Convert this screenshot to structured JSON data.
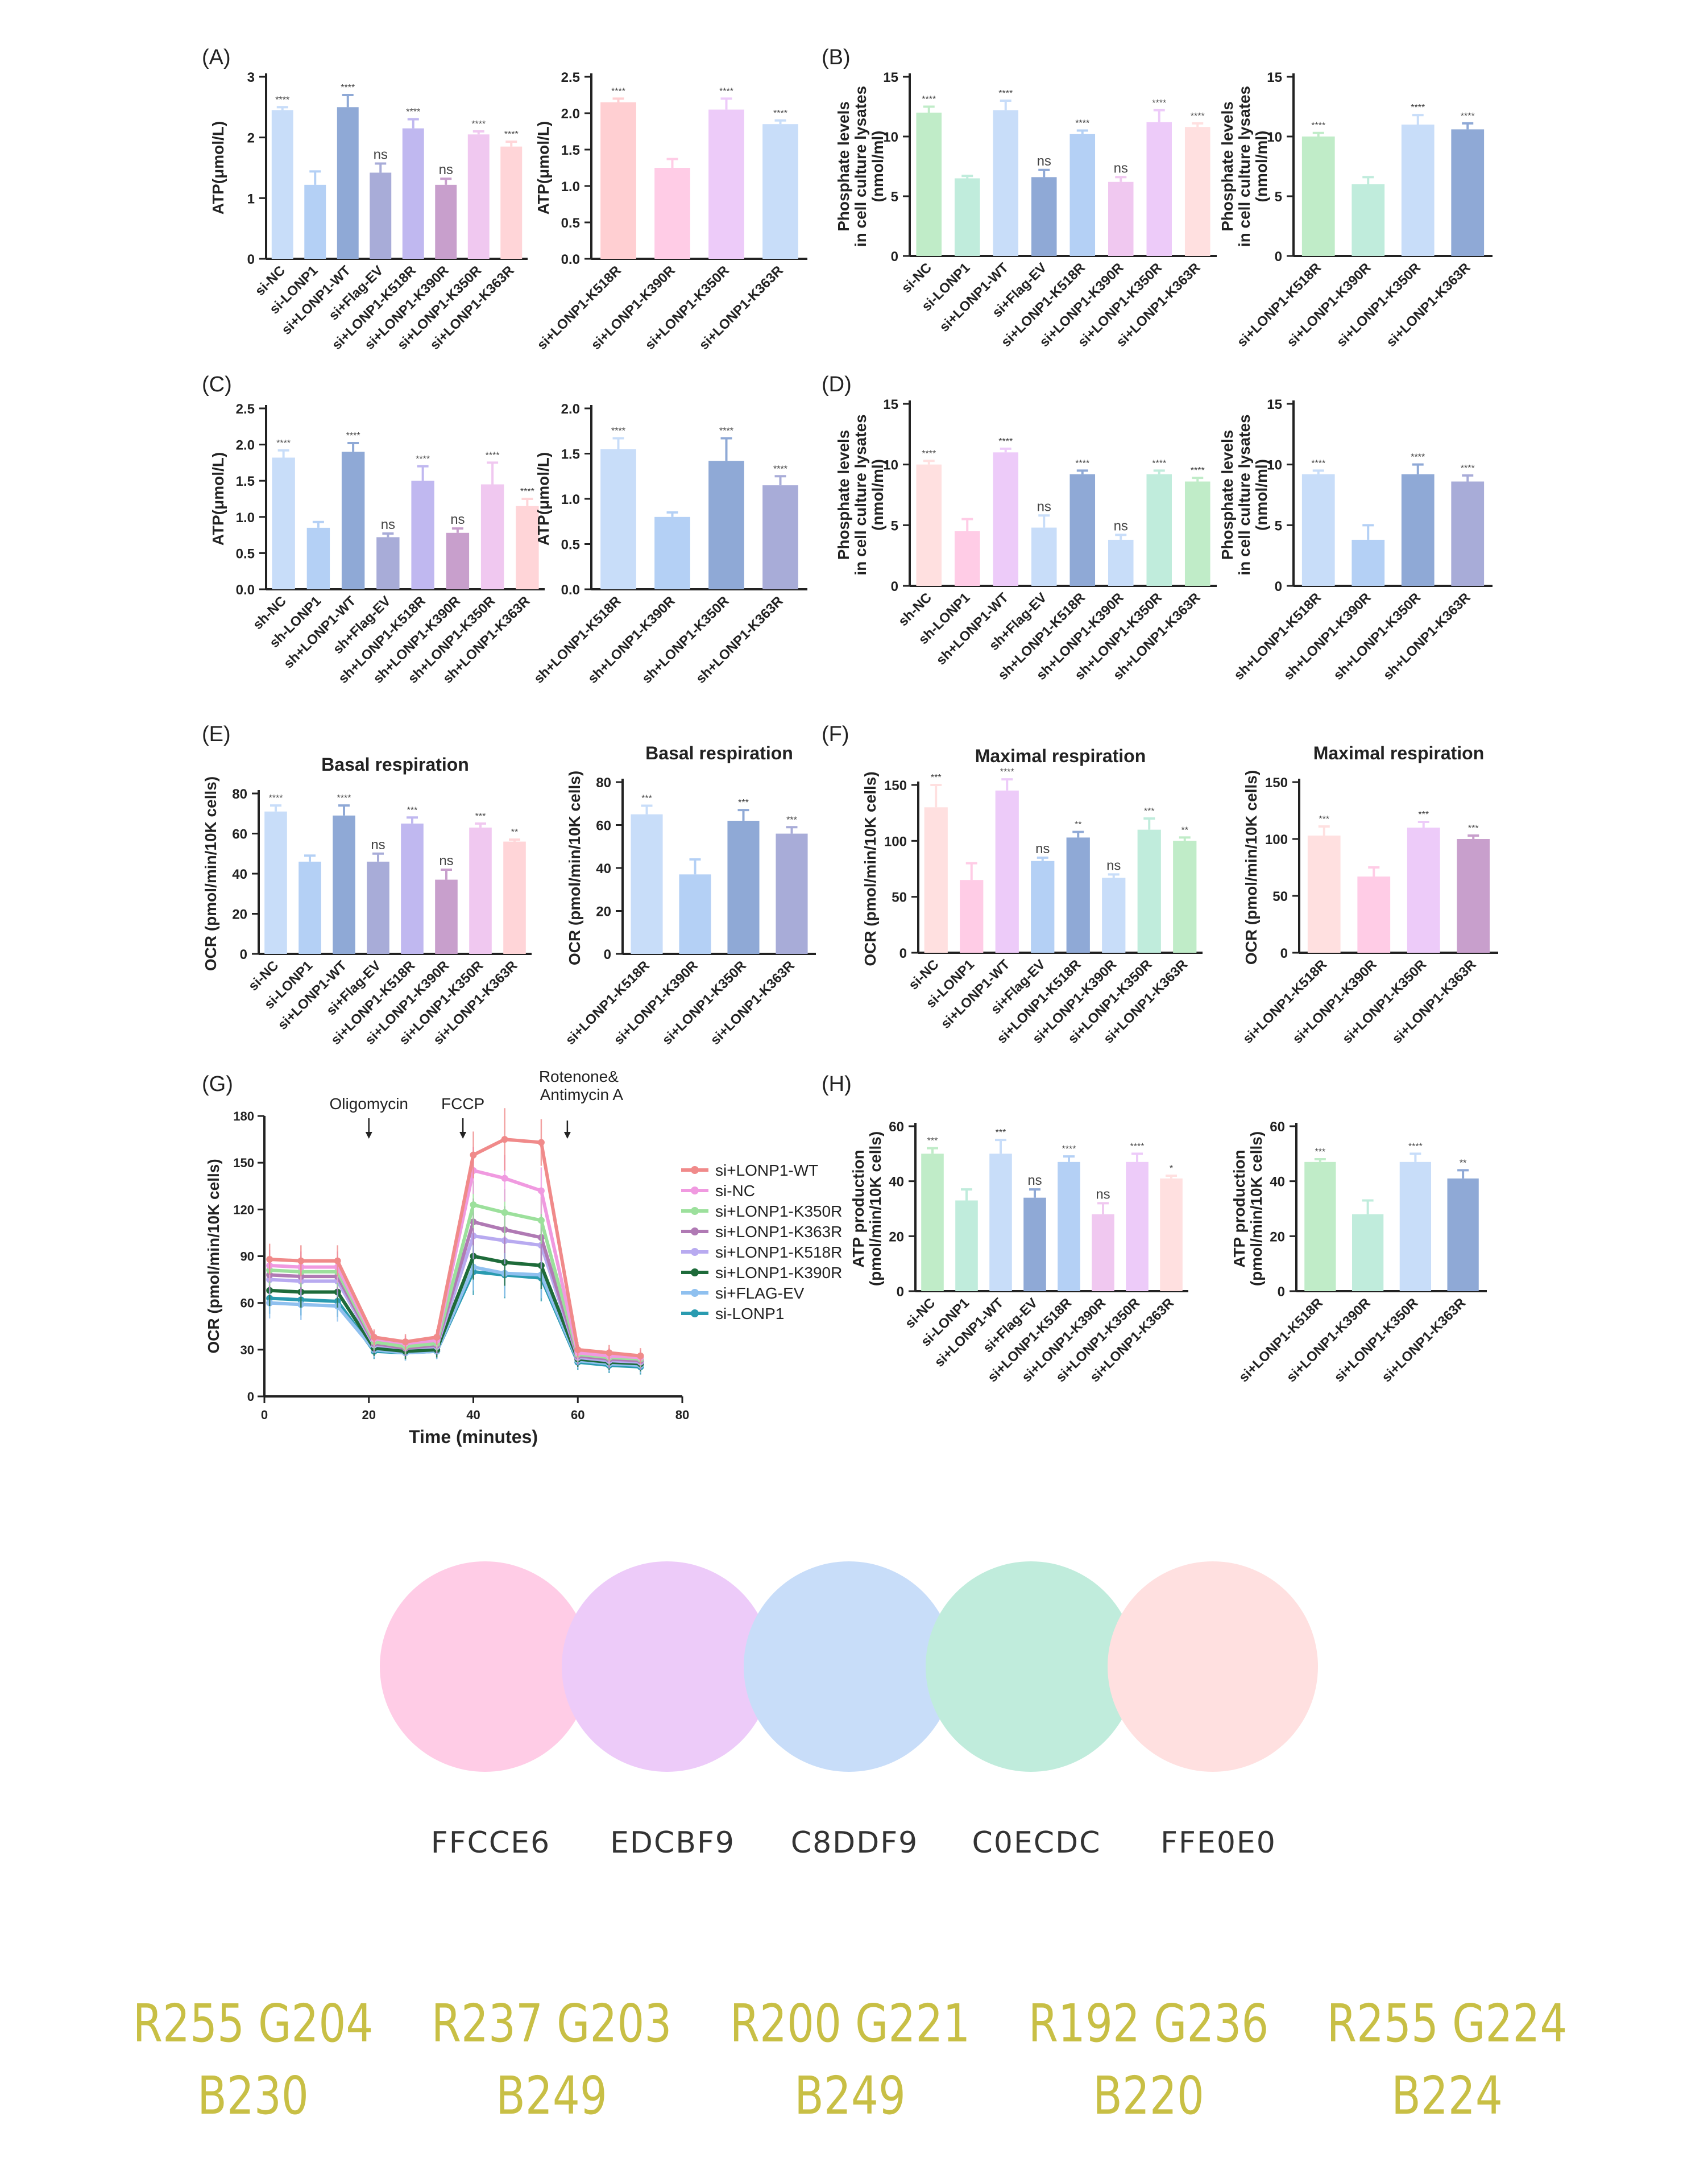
{
  "panels": [
    {
      "key": "A",
      "label": "(A)"
    },
    {
      "key": "B",
      "label": "(B)"
    },
    {
      "key": "C",
      "label": "(C)"
    },
    {
      "key": "D",
      "label": "(D)"
    },
    {
      "key": "E",
      "label": "(E)"
    },
    {
      "key": "F",
      "label": "(F)"
    },
    {
      "key": "G",
      "label": "(G)"
    },
    {
      "key": "H",
      "label": "(H)"
    }
  ],
  "chart_data": [
    {
      "id": "A1",
      "panel": "A",
      "type": "bar",
      "ylabel": "ATP(μmol/L)",
      "ylim": [
        0,
        3
      ],
      "yticks": [
        0,
        1,
        2,
        3
      ],
      "categories": [
        "si-NC",
        "si-LONP1",
        "si+LONP1-WT",
        "si+Flag-EV",
        "si+LONP1-K518R",
        "si+LONP1-K390R",
        "si+LONP1-K350R",
        "si+LONP1-K363R"
      ],
      "values": [
        2.45,
        1.22,
        2.5,
        1.42,
        2.15,
        1.22,
        2.05,
        1.85
      ],
      "errors": [
        0.05,
        0.22,
        0.2,
        0.15,
        0.15,
        0.1,
        0.05,
        0.08
      ],
      "sig": [
        "****",
        "",
        "****",
        "ns",
        "****",
        "ns",
        "****",
        "****"
      ],
      "colors": [
        "#c8ddf9",
        "#b4d0f5",
        "#8fa9d6",
        "#a8acd8",
        "#c0b8f0",
        "#c89fcc",
        "#f0c8f0",
        "#ffd5d8"
      ]
    },
    {
      "id": "A2",
      "panel": "A",
      "type": "bar",
      "ylabel": "ATP(μmol/L)",
      "ylim": [
        0,
        2.5
      ],
      "yticks": [
        0,
        0.5,
        1.0,
        1.5,
        2.0,
        2.5
      ],
      "categories": [
        "si+LONP1-K518R",
        "si+LONP1-K390R",
        "si+LONP1-K350R",
        "si+LONP1-K363R"
      ],
      "values": [
        2.15,
        1.25,
        2.05,
        1.85
      ],
      "errors": [
        0.05,
        0.12,
        0.15,
        0.05
      ],
      "sig": [
        "****",
        "",
        "****",
        "****"
      ],
      "colors": [
        "#ffcfd2",
        "#ffcce6",
        "#edcbf9",
        "#c8ddf9"
      ]
    },
    {
      "id": "B1",
      "panel": "B",
      "type": "bar",
      "ylabel": "Phosphate levels in cell culture lysates (nmol/ml)",
      "ylim": [
        0,
        15
      ],
      "yticks": [
        0,
        5,
        10,
        15
      ],
      "categories": [
        "si-NC",
        "si-LONP1",
        "si+LONP1-WT",
        "si+Flag-EV",
        "si+LONP1-K518R",
        "si+LONP1-K390R",
        "si+LONP1-K350R",
        "si+LONP1-K363R"
      ],
      "values": [
        12,
        6.5,
        12.2,
        6.6,
        10.2,
        6.2,
        11.2,
        10.8
      ],
      "errors": [
        0.5,
        0.2,
        0.8,
        0.6,
        0.3,
        0.4,
        1.0,
        0.3
      ],
      "sig": [
        "****",
        "",
        "****",
        "ns",
        "****",
        "ns",
        "****",
        "****"
      ],
      "colors": [
        "#c0ecc8",
        "#c0ecdc",
        "#c8ddf9",
        "#8fa9d6",
        "#b4d0f5",
        "#f0c8f0",
        "#edcbf9",
        "#ffe0e0"
      ]
    },
    {
      "id": "B2",
      "panel": "B",
      "type": "bar",
      "ylabel": "Phosphate levels in cell culture lysates (nmol/ml)",
      "ylim": [
        0,
        15
      ],
      "yticks": [
        0,
        5,
        10,
        15
      ],
      "categories": [
        "si+LONP1-K518R",
        "si+LONP1-K390R",
        "si+LONP1-K350R",
        "si+LONP1-K363R"
      ],
      "values": [
        10,
        6,
        11,
        10.6
      ],
      "errors": [
        0.3,
        0.6,
        0.8,
        0.5
      ],
      "sig": [
        "****",
        "",
        "****",
        "****"
      ],
      "colors": [
        "#c0ecc8",
        "#c0ecdc",
        "#c8ddf9",
        "#8fa9d6"
      ]
    },
    {
      "id": "C1",
      "panel": "C",
      "type": "bar",
      "ylabel": "ATP(μmol/L)",
      "ylim": [
        0,
        2.5
      ],
      "yticks": [
        0,
        0.5,
        1.0,
        1.5,
        2.0,
        2.5
      ],
      "categories": [
        "sh-NC",
        "sh-LONP1",
        "sh+LONP1-WT",
        "sh+Flag-EV",
        "sh+LONP1-K518R",
        "sh+LONP1-K390R",
        "sh+LONP1-K350R",
        "sh+LONP1-K363R"
      ],
      "values": [
        1.82,
        0.85,
        1.9,
        0.72,
        1.5,
        0.78,
        1.45,
        1.15
      ],
      "errors": [
        0.1,
        0.08,
        0.12,
        0.05,
        0.2,
        0.06,
        0.3,
        0.1
      ],
      "sig": [
        "****",
        "",
        "****",
        "ns",
        "****",
        "ns",
        "****",
        "****"
      ],
      "colors": [
        "#c8ddf9",
        "#b4d0f5",
        "#8fa9d6",
        "#a8acd8",
        "#c0b8f0",
        "#c89fcc",
        "#f0c8f0",
        "#ffd5d8"
      ]
    },
    {
      "id": "C2",
      "panel": "C",
      "type": "bar",
      "ylabel": "ATP(μmol/L)",
      "ylim": [
        0,
        2.0
      ],
      "yticks": [
        0,
        0.5,
        1.0,
        1.5,
        2.0
      ],
      "categories": [
        "sh+LONP1-K518R",
        "sh+LONP1-K390R",
        "sh+LONP1-K350R",
        "sh+LONP1-K363R"
      ],
      "values": [
        1.55,
        0.8,
        1.42,
        1.15
      ],
      "errors": [
        0.12,
        0.05,
        0.25,
        0.1
      ],
      "sig": [
        "****",
        "",
        "****",
        "****"
      ],
      "colors": [
        "#c8ddf9",
        "#b4d0f5",
        "#8fa9d6",
        "#a8acd8"
      ]
    },
    {
      "id": "D1",
      "panel": "D",
      "type": "bar",
      "ylabel": "Phosphate levels in cell culture lysates (nmol/ml)",
      "ylim": [
        0,
        15
      ],
      "yticks": [
        0,
        5,
        10,
        15
      ],
      "categories": [
        "sh-NC",
        "sh-LONP1",
        "sh+LONP1-WT",
        "sh+Flag-EV",
        "sh+LONP1-K518R",
        "sh+LONP1-K390R",
        "sh+LONP1-K350R",
        "sh+LONP1-K363R"
      ],
      "values": [
        10,
        4.5,
        11,
        4.8,
        9.2,
        3.8,
        9.2,
        8.6
      ],
      "errors": [
        0.3,
        1.0,
        0.3,
        1.0,
        0.3,
        0.4,
        0.3,
        0.3
      ],
      "sig": [
        "****",
        "",
        "****",
        "ns",
        "****",
        "ns",
        "****",
        "****"
      ],
      "colors": [
        "#ffe0e0",
        "#ffcce6",
        "#edcbf9",
        "#c8ddf9",
        "#8fa9d6",
        "#c8ddf9",
        "#c0ecdc",
        "#c0ecc8"
      ]
    },
    {
      "id": "D2",
      "panel": "D",
      "type": "bar",
      "ylabel": "Phosphate levels in cell culture lysates (nmol/ml)",
      "ylim": [
        0,
        15
      ],
      "yticks": [
        0,
        5,
        10,
        15
      ],
      "categories": [
        "sh+LONP1-K518R",
        "sh+LONP1-K390R",
        "sh+LONP1-K350R",
        "sh+LONP1-K363R"
      ],
      "values": [
        9.2,
        3.8,
        9.2,
        8.6
      ],
      "errors": [
        0.3,
        1.2,
        0.8,
        0.5
      ],
      "sig": [
        "****",
        "",
        "****",
        "****"
      ],
      "colors": [
        "#c8ddf9",
        "#b4d0f5",
        "#8fa9d6",
        "#a8acd8"
      ]
    },
    {
      "id": "E1",
      "panel": "E",
      "type": "bar",
      "title": "Basal respiration",
      "ylabel": "OCR (pmol/min/10K cells)",
      "ylim": [
        0,
        80
      ],
      "yticks": [
        0,
        20,
        40,
        60,
        80
      ],
      "categories": [
        "si-NC",
        "si-LONP1",
        "si+LONP1-WT",
        "si+Flag-EV",
        "si+LONP1-K518R",
        "si+LONP1-K390R",
        "si+LONP1-K350R",
        "si+LONP1-K363R"
      ],
      "values": [
        71,
        46,
        69,
        46,
        65,
        37,
        63,
        56
      ],
      "errors": [
        3,
        3,
        5,
        4,
        3,
        5,
        2,
        1
      ],
      "sig": [
        "****",
        "",
        "****",
        "ns",
        "***",
        "ns",
        "***",
        "**"
      ],
      "colors": [
        "#c8ddf9",
        "#b4d0f5",
        "#8fa9d6",
        "#a8acd8",
        "#c0b8f0",
        "#c89fcc",
        "#f0c8f0",
        "#ffd5d8"
      ]
    },
    {
      "id": "E2",
      "panel": "E",
      "type": "bar",
      "title": "Basal respiration",
      "ylabel": "OCR (pmol/min/10K cells)",
      "ylim": [
        0,
        80
      ],
      "yticks": [
        0,
        20,
        40,
        60,
        80
      ],
      "categories": [
        "si+LONP1-K518R",
        "si+LONP1-K390R",
        "si+LONP1-K350R",
        "si+LONP1-K363R"
      ],
      "values": [
        65,
        37,
        62,
        56
      ],
      "errors": [
        4,
        7,
        5,
        3
      ],
      "sig": [
        "***",
        "",
        "***",
        "***"
      ],
      "colors": [
        "#c8ddf9",
        "#b4d0f5",
        "#8fa9d6",
        "#a8acd8"
      ]
    },
    {
      "id": "F1",
      "panel": "F",
      "type": "bar",
      "title": "Maximal respiration",
      "ylabel": "OCR (pmol/min/10K cells)",
      "ylim": [
        0,
        150
      ],
      "yticks": [
        0,
        50,
        100,
        150
      ],
      "categories": [
        "si-NC",
        "si-LONP1",
        "si+LONP1-WT",
        "si+Flag-EV",
        "si+LONP1-K518R",
        "si+LONP1-K390R",
        "si+LONP1-K350R",
        "si+LONP1-K363R"
      ],
      "values": [
        130,
        65,
        145,
        82,
        103,
        67,
        110,
        100
      ],
      "errors": [
        20,
        15,
        10,
        3,
        5,
        3,
        10,
        3
      ],
      "sig": [
        "***",
        "",
        "****",
        "ns",
        "**",
        "ns",
        "***",
        "**"
      ],
      "colors": [
        "#ffe0e0",
        "#ffcce6",
        "#edcbf9",
        "#b4d0f5",
        "#8fa9d6",
        "#c8ddf9",
        "#c0ecdc",
        "#c0ecc8"
      ]
    },
    {
      "id": "F2",
      "panel": "F",
      "type": "bar",
      "title": "Maximal respiration",
      "ylabel": "OCR (pmol/min/10K cells)",
      "ylim": [
        0,
        150
      ],
      "yticks": [
        0,
        50,
        100,
        150
      ],
      "categories": [
        "si+LONP1-K518R",
        "si+LONP1-K390R",
        "si+LONP1-K350R",
        "si+LONP1-K363R"
      ],
      "values": [
        103,
        67,
        110,
        100
      ],
      "errors": [
        8,
        8,
        5,
        3
      ],
      "sig": [
        "***",
        "",
        "***",
        "***"
      ],
      "colors": [
        "#ffe0e0",
        "#ffcce6",
        "#edcbf9",
        "#c89fcc"
      ]
    },
    {
      "id": "G",
      "panel": "G",
      "type": "line",
      "xlabel": "Time (minutes)",
      "ylabel": "OCR (pmol/min/10K cells)",
      "xlim": [
        0,
        80
      ],
      "xticks": [
        0,
        20,
        40,
        60,
        80
      ],
      "ylim": [
        0,
        180
      ],
      "yticks": [
        0,
        30,
        60,
        90,
        120,
        150,
        180
      ],
      "annotations": [
        {
          "text": "Oligomycin",
          "x": 20
        },
        {
          "text": "FCCP",
          "x": 38
        },
        {
          "text": "Rotenone&",
          "text2": "Antimycin A",
          "x": 58
        }
      ],
      "x": [
        1,
        7,
        14,
        21,
        27,
        33,
        40,
        46,
        53,
        60,
        66,
        72
      ],
      "series": [
        {
          "name": "si+LONP1-WT",
          "color": "#f08a8a",
          "values": [
            88,
            87,
            87,
            38,
            35,
            38,
            155,
            165,
            163,
            30,
            28,
            26
          ],
          "err": [
            10,
            10,
            10,
            5,
            5,
            5,
            15,
            20,
            15,
            5,
            5,
            5
          ]
        },
        {
          "name": "si-NC",
          "color": "#f09ae0",
          "values": [
            84,
            83,
            83,
            37,
            34,
            36,
            145,
            140,
            132,
            28,
            26,
            25
          ],
          "err": [
            10,
            10,
            10,
            5,
            5,
            5,
            15,
            15,
            15,
            5,
            5,
            5
          ]
        },
        {
          "name": "si+LONP1-K350R",
          "color": "#9ce09c",
          "values": [
            81,
            80,
            80,
            35,
            32,
            34,
            123,
            118,
            113,
            27,
            25,
            24
          ],
          "err": [
            10,
            10,
            10,
            5,
            5,
            5,
            15,
            15,
            15,
            5,
            5,
            5
          ]
        },
        {
          "name": "si+LONP1-K363R",
          "color": "#b07ab4",
          "values": [
            78,
            77,
            77,
            34,
            31,
            33,
            112,
            107,
            102,
            26,
            24,
            23
          ],
          "err": [
            10,
            10,
            10,
            5,
            5,
            5,
            15,
            15,
            15,
            5,
            5,
            5
          ]
        },
        {
          "name": "si+LONP1-K518R",
          "color": "#b8aaf0",
          "values": [
            75,
            74,
            74,
            33,
            31,
            32,
            103,
            100,
            97,
            25,
            23,
            22
          ],
          "err": [
            10,
            10,
            10,
            5,
            5,
            5,
            15,
            15,
            15,
            5,
            5,
            5
          ]
        },
        {
          "name": "si+LONP1-K390R",
          "color": "#1e6b3a",
          "values": [
            68,
            67,
            67,
            31,
            29,
            30,
            90,
            86,
            84,
            24,
            22,
            21
          ],
          "err": [
            10,
            10,
            10,
            5,
            5,
            5,
            15,
            15,
            15,
            5,
            5,
            5
          ]
        },
        {
          "name": "si+FLAG-EV",
          "color": "#8fc0ef",
          "values": [
            60,
            59,
            58,
            30,
            28,
            29,
            83,
            79,
            78,
            23,
            21,
            20
          ],
          "err": [
            10,
            10,
            10,
            5,
            5,
            5,
            15,
            15,
            15,
            5,
            5,
            5
          ]
        },
        {
          "name": "si-LONP1",
          "color": "#2a9bb0",
          "values": [
            63,
            62,
            61,
            29,
            28,
            29,
            80,
            78,
            76,
            22,
            20,
            19
          ],
          "err": [
            10,
            10,
            10,
            5,
            5,
            5,
            15,
            15,
            15,
            5,
            5,
            5
          ]
        }
      ]
    },
    {
      "id": "H1",
      "panel": "H",
      "type": "bar",
      "ylabel": "ATP production (pmol/min/10K cells)",
      "ylim": [
        0,
        60
      ],
      "yticks": [
        0,
        20,
        40,
        60
      ],
      "categories": [
        "si-NC",
        "si-LONP1",
        "si+LONP1-WT",
        "si+Flag-EV",
        "si+LONP1-K518R",
        "si+LONP1-K390R",
        "si+LONP1-K350R",
        "si+LONP1-K363R"
      ],
      "values": [
        50,
        33,
        50,
        34,
        47,
        28,
        47,
        41
      ],
      "errors": [
        2,
        4,
        5,
        3,
        2,
        4,
        3,
        1
      ],
      "sig": [
        "***",
        "",
        "***",
        "ns",
        "****",
        "ns",
        "****",
        "*"
      ],
      "colors": [
        "#c0ecc8",
        "#c0ecdc",
        "#c8ddf9",
        "#8fa9d6",
        "#b4d0f5",
        "#f0c8f0",
        "#edcbf9",
        "#ffe0e0"
      ]
    },
    {
      "id": "H2",
      "panel": "H",
      "type": "bar",
      "ylabel": "ATP production (pmol/min/10K cells)",
      "ylim": [
        0,
        60
      ],
      "yticks": [
        0,
        20,
        40,
        60
      ],
      "categories": [
        "si+LONP1-K518R",
        "si+LONP1-K390R",
        "si+LONP1-K350R",
        "si+LONP1-K363R"
      ],
      "values": [
        47,
        28,
        47,
        41
      ],
      "errors": [
        1,
        5,
        3,
        3
      ],
      "sig": [
        "***",
        "",
        "****",
        "**"
      ],
      "colors": [
        "#c0ecc8",
        "#c0ecdc",
        "#c8ddf9",
        "#8fa9d6"
      ]
    }
  ],
  "palette": [
    {
      "hex": "FFCCE6",
      "color": "#FFCCE6",
      "rgb_line1": "R255 G204",
      "rgb_line2": "B230"
    },
    {
      "hex": "EDCBF9",
      "color": "#EDCBF9",
      "rgb_line1": "R237 G203",
      "rgb_line2": "B249"
    },
    {
      "hex": "C8DDF9",
      "color": "#C8DDF9",
      "rgb_line1": "R200 G221",
      "rgb_line2": "B249"
    },
    {
      "hex": "C0ECDC",
      "color": "#C0ECDC",
      "rgb_line1": "R192 G236",
      "rgb_line2": "B220"
    },
    {
      "hex": "FFE0E0",
      "color": "#FFE0E0",
      "rgb_line1": "R255 G224",
      "rgb_line2": "B224"
    }
  ]
}
